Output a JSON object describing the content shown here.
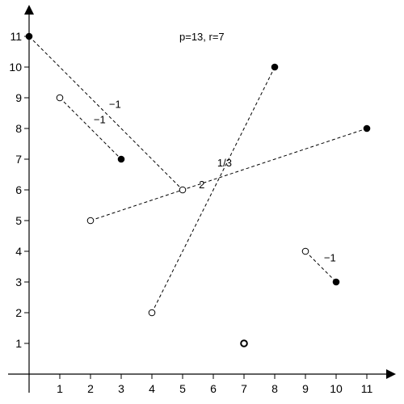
{
  "chart_data": {
    "type": "scatter",
    "title": "",
    "xlabel": "",
    "ylabel": "",
    "xlim": [
      0,
      11
    ],
    "ylim": [
      0,
      11
    ],
    "grid": false,
    "x_ticks": [
      "1",
      "2",
      "3",
      "4",
      "5",
      "6",
      "7",
      "8",
      "9",
      "10",
      "11"
    ],
    "y_ticks": [
      "1",
      "2",
      "3",
      "4",
      "5",
      "6",
      "7",
      "8",
      "9",
      "10",
      "11"
    ],
    "annotation": "p=13, r=7",
    "points": [
      {
        "x": 0,
        "y": 11,
        "style": "filled"
      },
      {
        "x": 1,
        "y": 9,
        "style": "open"
      },
      {
        "x": 3,
        "y": 7,
        "style": "filled"
      },
      {
        "x": 8,
        "y": 10,
        "style": "filled"
      },
      {
        "x": 11,
        "y": 8,
        "style": "filled"
      },
      {
        "x": 5,
        "y": 6,
        "style": "open"
      },
      {
        "x": 2,
        "y": 5,
        "style": "open"
      },
      {
        "x": 9,
        "y": 4,
        "style": "open"
      },
      {
        "x": 10,
        "y": 3,
        "style": "filled"
      },
      {
        "x": 4,
        "y": 2,
        "style": "open"
      },
      {
        "x": 7,
        "y": 1,
        "style": "open-bold"
      }
    ],
    "segments": [
      {
        "from": [
          0,
          11
        ],
        "to": [
          5,
          6
        ],
        "label": "−1"
      },
      {
        "from": [
          1,
          9
        ],
        "to": [
          3,
          7
        ],
        "label": "−1"
      },
      {
        "from": [
          2,
          5
        ],
        "to": [
          11,
          8
        ],
        "label": "1/3"
      },
      {
        "from": [
          4,
          2
        ],
        "to": [
          8,
          10
        ],
        "label": "2"
      },
      {
        "from": [
          9,
          4
        ],
        "to": [
          10,
          3
        ],
        "label": "−1"
      }
    ]
  }
}
